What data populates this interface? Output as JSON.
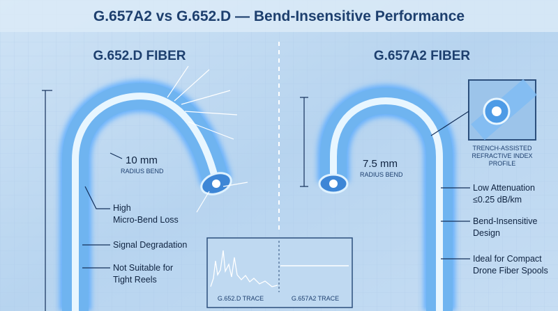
{
  "header": {
    "title": "G.657A2 vs G.652.D — Bend-Insensitive Performance"
  },
  "left": {
    "heading": "G.652.D FIBER",
    "bend_value": "10 mm",
    "bend_label": "RADIUS BEND",
    "callouts": [
      {
        "lines": [
          "High",
          "Micro-Bend Loss"
        ]
      },
      {
        "lines": [
          "Signal Degradation"
        ]
      },
      {
        "lines": [
          "Not Suitable for",
          "Tight Reels"
        ]
      }
    ]
  },
  "right": {
    "heading": "G.657A2 FIBER",
    "bend_value": "7.5 mm",
    "bend_label": "RADIUS BEND",
    "inset_caption": [
      "TRENCH-ASSISTED",
      "REFRACTIVE INDEX",
      "PROFILE"
    ],
    "callouts": [
      {
        "lines": [
          "Low Attenuation",
          "≤0.25 dB/km"
        ]
      },
      {
        "lines": [
          "Bend-Insensitive",
          "Design"
        ]
      },
      {
        "lines": [
          "Ideal for Compact",
          "Drone Fiber Spools"
        ]
      }
    ]
  },
  "trace": {
    "left_label": "G.652.D TRACE",
    "right_label": "G.657A2 TRACE"
  }
}
